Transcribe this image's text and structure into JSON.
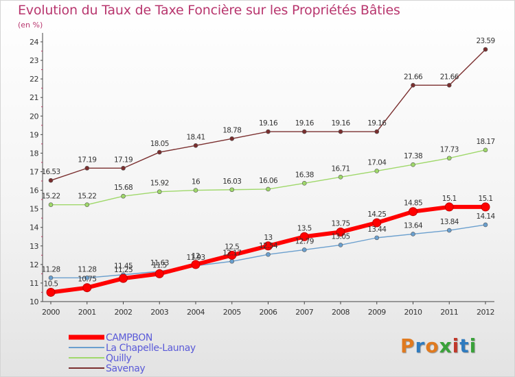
{
  "header": {
    "title": "Evolution du Taux de Taxe Foncière sur les Propriétés Bâties",
    "subtitle": "(en %)"
  },
  "logo": {
    "text": "Proxiti",
    "colors": [
      "#e07a1f",
      "#2f7bbf",
      "#e07a1f",
      "#3aa23a",
      "#c0392b",
      "#2f7bbf",
      "#3aa23a"
    ]
  },
  "chart_data": {
    "type": "line",
    "title": "Evolution du Taux de Taxe Foncière sur les Propriétés Bâties",
    "ylabel": "(en %)",
    "xlabel": "",
    "x": [
      "2000",
      "2001",
      "2002",
      "2003",
      "2004",
      "2005",
      "2006",
      "2007",
      "2008",
      "2009",
      "2010",
      "2011",
      "2012"
    ],
    "ylim": [
      10,
      24
    ],
    "yticks": [
      "10",
      "11",
      "12",
      "13",
      "14",
      "15",
      "16",
      "17",
      "18",
      "19",
      "20",
      "21",
      "22",
      "23",
      "24"
    ],
    "grid": false,
    "legend_position": "bottom-left",
    "series": [
      {
        "name": "CAMPBON",
        "color": "#ff0000",
        "values": [
          10.5,
          10.75,
          11.25,
          11.5,
          12,
          12.5,
          13,
          13.5,
          13.75,
          14.25,
          14.85,
          15.1,
          15.1
        ],
        "labels": [
          "10.5",
          "10.75",
          "11.25",
          "11.5",
          "12",
          "12.5",
          "13",
          "13.5",
          "13.75",
          "14.25",
          "14.85",
          "15.1",
          "15.1"
        ]
      },
      {
        "name": "La Chapelle-Launay",
        "color": "#6a9fce",
        "values": [
          11.28,
          11.28,
          11.45,
          11.63,
          11.93,
          12.17,
          12.54,
          12.79,
          13.05,
          13.44,
          13.64,
          13.84,
          14.14
        ],
        "labels": [
          "11.28",
          "11.28",
          "11.45",
          "11.63",
          "11.93",
          "12.17",
          "12.54",
          "12.79",
          "13.05",
          "13.44",
          "13.64",
          "13.84",
          "14.14"
        ]
      },
      {
        "name": "Quilly",
        "color": "#9fd86a",
        "values": [
          15.22,
          15.22,
          15.68,
          15.92,
          16,
          16.03,
          16.06,
          16.38,
          16.71,
          17.04,
          17.38,
          17.73,
          18.17
        ],
        "labels": [
          "15.22",
          "15.22",
          "15.68",
          "15.92",
          "16",
          "16.03",
          "16.06",
          "16.38",
          "16.71",
          "17.04",
          "17.38",
          "17.73",
          "18.17"
        ]
      },
      {
        "name": "Savenay",
        "color": "#7a2e2e",
        "values": [
          16.53,
          17.19,
          17.19,
          18.05,
          18.41,
          18.78,
          19.16,
          19.16,
          19.16,
          19.16,
          21.66,
          21.66,
          23.59
        ],
        "labels": [
          "16.53",
          "17.19",
          "17.19",
          "18.05",
          "18.41",
          "18.78",
          "19.16",
          "19.16",
          "19.16",
          "19.16",
          "21.66",
          "21.66",
          "23.59"
        ]
      }
    ]
  }
}
